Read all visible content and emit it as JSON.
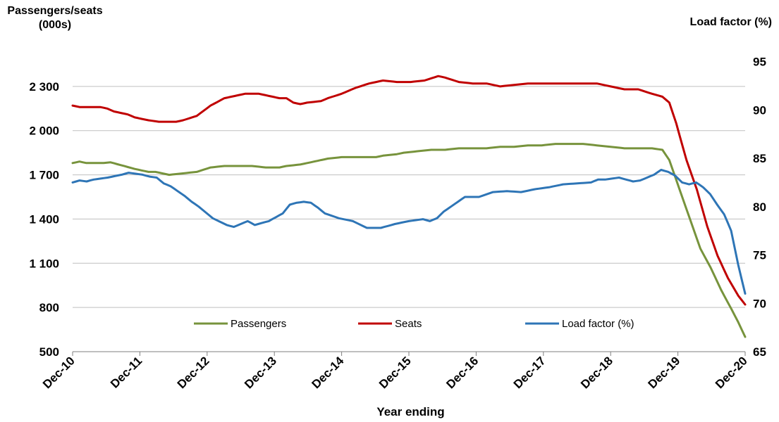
{
  "chart_data": {
    "type": "line",
    "y_left_label": "Passengers/seats\n(000s)",
    "y_right_label": "Load factor (%)",
    "xlabel": "Year ending",
    "y_left_range": [
      500,
      2600
    ],
    "y_left_ticks": [
      500,
      800,
      1100,
      1400,
      1700,
      2000,
      2300
    ],
    "y_left_tick_labels": [
      "500",
      "800",
      "1 100",
      "1 400",
      "1 700",
      "2 000",
      "2 300"
    ],
    "y_right_range": [
      65,
      97
    ],
    "y_right_ticks": [
      65,
      70,
      75,
      80,
      85,
      90,
      95
    ],
    "y_right_tick_labels": [
      "65",
      "70",
      "75",
      "80",
      "85",
      "90",
      "95"
    ],
    "x_tick_labels": [
      "Dec-10",
      "Dec-11",
      "Dec-12",
      "Dec-13",
      "Dec-14",
      "Dec-15",
      "Dec-16",
      "Dec-17",
      "Dec-18",
      "Dec-19",
      "Dec-20"
    ],
    "grid": true,
    "legend_position": "bottom-center",
    "series": [
      {
        "name": "Passengers",
        "axis": "left",
        "color": "#77933c",
        "anchors": [
          [
            0,
            1780
          ],
          [
            2,
            1790
          ],
          [
            4,
            1780
          ],
          [
            9,
            1780
          ],
          [
            11,
            1785
          ],
          [
            18,
            1740
          ],
          [
            22,
            1720
          ],
          [
            24,
            1720
          ],
          [
            28,
            1700
          ],
          [
            32,
            1710
          ],
          [
            36,
            1720
          ],
          [
            40,
            1750
          ],
          [
            44,
            1760
          ],
          [
            48,
            1760
          ],
          [
            52,
            1760
          ],
          [
            56,
            1750
          ],
          [
            60,
            1750
          ],
          [
            62,
            1760
          ],
          [
            66,
            1770
          ],
          [
            70,
            1790
          ],
          [
            74,
            1810
          ],
          [
            78,
            1820
          ],
          [
            84,
            1820
          ],
          [
            88,
            1820
          ],
          [
            90,
            1830
          ],
          [
            94,
            1840
          ],
          [
            96,
            1850
          ],
          [
            100,
            1860
          ],
          [
            104,
            1870
          ],
          [
            108,
            1870
          ],
          [
            112,
            1880
          ],
          [
            116,
            1880
          ],
          [
            120,
            1880
          ],
          [
            124,
            1890
          ],
          [
            128,
            1890
          ],
          [
            132,
            1900
          ],
          [
            136,
            1900
          ],
          [
            140,
            1910
          ],
          [
            144,
            1910
          ],
          [
            148,
            1910
          ],
          [
            152,
            1900
          ],
          [
            156,
            1890
          ],
          [
            160,
            1880
          ],
          [
            164,
            1880
          ],
          [
            168,
            1880
          ],
          [
            171,
            1870
          ],
          [
            173,
            1800
          ],
          [
            176,
            1600
          ],
          [
            179,
            1400
          ],
          [
            182,
            1200
          ],
          [
            185,
            1070
          ],
          [
            188,
            920
          ],
          [
            191,
            790
          ],
          [
            193,
            700
          ],
          [
            195,
            600
          ]
        ]
      },
      {
        "name": "Seats",
        "axis": "left",
        "color": "#c00000",
        "anchors": [
          [
            0,
            2170
          ],
          [
            2,
            2160
          ],
          [
            8,
            2160
          ],
          [
            10,
            2150
          ],
          [
            12,
            2130
          ],
          [
            16,
            2110
          ],
          [
            18,
            2090
          ],
          [
            22,
            2070
          ],
          [
            25,
            2060
          ],
          [
            30,
            2060
          ],
          [
            32,
            2070
          ],
          [
            36,
            2100
          ],
          [
            40,
            2170
          ],
          [
            44,
            2220
          ],
          [
            48,
            2240
          ],
          [
            50,
            2250
          ],
          [
            54,
            2250
          ],
          [
            56,
            2240
          ],
          [
            60,
            2220
          ],
          [
            62,
            2220
          ],
          [
            64,
            2190
          ],
          [
            66,
            2180
          ],
          [
            68,
            2190
          ],
          [
            72,
            2200
          ],
          [
            74,
            2220
          ],
          [
            78,
            2250
          ],
          [
            82,
            2290
          ],
          [
            86,
            2320
          ],
          [
            90,
            2340
          ],
          [
            94,
            2330
          ],
          [
            98,
            2330
          ],
          [
            102,
            2340
          ],
          [
            106,
            2370
          ],
          [
            108,
            2360
          ],
          [
            112,
            2330
          ],
          [
            116,
            2320
          ],
          [
            120,
            2320
          ],
          [
            124,
            2300
          ],
          [
            128,
            2310
          ],
          [
            132,
            2320
          ],
          [
            136,
            2320
          ],
          [
            140,
            2320
          ],
          [
            144,
            2320
          ],
          [
            148,
            2320
          ],
          [
            152,
            2320
          ],
          [
            156,
            2300
          ],
          [
            160,
            2280
          ],
          [
            164,
            2280
          ],
          [
            168,
            2250
          ],
          [
            171,
            2230
          ],
          [
            173,
            2190
          ],
          [
            175,
            2050
          ],
          [
            178,
            1800
          ],
          [
            181,
            1600
          ],
          [
            184,
            1350
          ],
          [
            187,
            1150
          ],
          [
            190,
            1000
          ],
          [
            193,
            880
          ],
          [
            195,
            820
          ]
        ]
      },
      {
        "name": "Load factor (%)",
        "axis": "right",
        "color": "#2e75b6",
        "anchors": [
          [
            0,
            82.5
          ],
          [
            2,
            82.7
          ],
          [
            4,
            82.6
          ],
          [
            6,
            82.8
          ],
          [
            10,
            83.0
          ],
          [
            14,
            83.3
          ],
          [
            16,
            83.5
          ],
          [
            20,
            83.3
          ],
          [
            22,
            83.1
          ],
          [
            24,
            83.0
          ],
          [
            26,
            82.4
          ],
          [
            28,
            82.1
          ],
          [
            30,
            81.6
          ],
          [
            32,
            81.1
          ],
          [
            34,
            80.5
          ],
          [
            36,
            80.0
          ],
          [
            38,
            79.4
          ],
          [
            40,
            78.8
          ],
          [
            44,
            78.1
          ],
          [
            46,
            77.9
          ],
          [
            48,
            78.2
          ],
          [
            50,
            78.5
          ],
          [
            52,
            78.1
          ],
          [
            56,
            78.5
          ],
          [
            60,
            79.3
          ],
          [
            62,
            80.2
          ],
          [
            64,
            80.4
          ],
          [
            66,
            80.5
          ],
          [
            68,
            80.4
          ],
          [
            70,
            79.9
          ],
          [
            72,
            79.3
          ],
          [
            76,
            78.8
          ],
          [
            80,
            78.5
          ],
          [
            84,
            77.8
          ],
          [
            88,
            77.8
          ],
          [
            92,
            78.2
          ],
          [
            96,
            78.5
          ],
          [
            100,
            78.7
          ],
          [
            102,
            78.5
          ],
          [
            104,
            78.8
          ],
          [
            106,
            79.5
          ],
          [
            108,
            80.0
          ],
          [
            110,
            80.5
          ],
          [
            112,
            81.0
          ],
          [
            116,
            81.0
          ],
          [
            120,
            81.5
          ],
          [
            124,
            81.6
          ],
          [
            128,
            81.5
          ],
          [
            132,
            81.8
          ],
          [
            136,
            82.0
          ],
          [
            140,
            82.3
          ],
          [
            144,
            82.4
          ],
          [
            148,
            82.5
          ],
          [
            150,
            82.8
          ],
          [
            152,
            82.8
          ],
          [
            156,
            83.0
          ],
          [
            160,
            82.6
          ],
          [
            162,
            82.7
          ],
          [
            164,
            83.0
          ],
          [
            166,
            83.3
          ],
          [
            168,
            83.8
          ],
          [
            170,
            83.6
          ],
          [
            172,
            83.2
          ],
          [
            174,
            82.5
          ],
          [
            176,
            82.3
          ],
          [
            178,
            82.5
          ],
          [
            180,
            82.0
          ],
          [
            182,
            81.3
          ],
          [
            184,
            80.2
          ],
          [
            186,
            79.2
          ],
          [
            188,
            77.5
          ],
          [
            190,
            74.0
          ],
          [
            192,
            71.0
          ]
        ]
      }
    ]
  }
}
